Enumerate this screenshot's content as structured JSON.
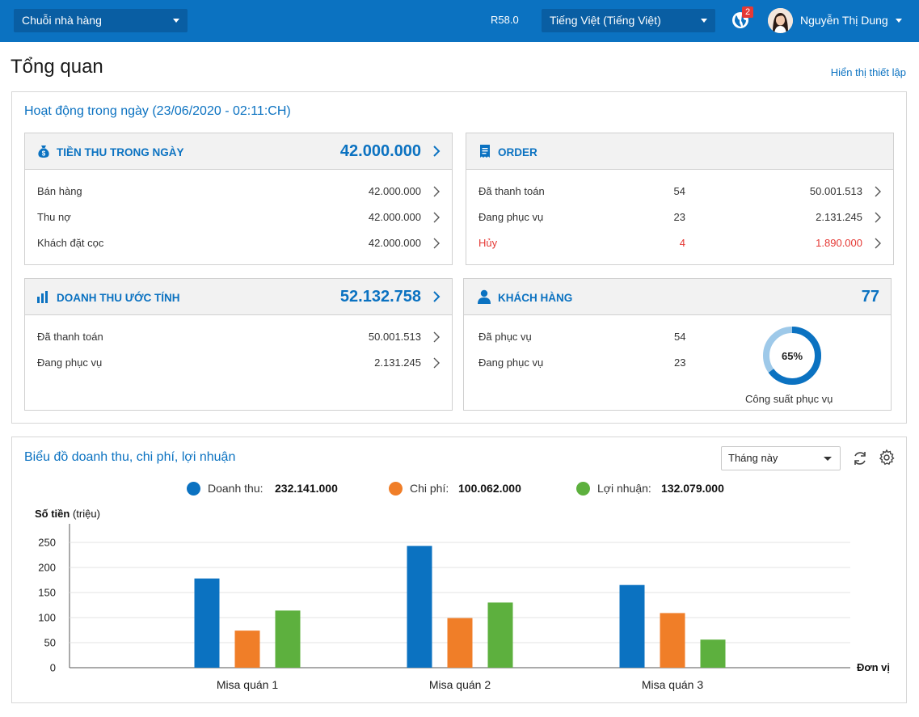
{
  "topbar": {
    "chain_select": "Chuỗi nhà hàng",
    "version": "R58.0",
    "language": "Tiếng Việt (Tiếng Việt)",
    "notification_count": "2",
    "user_name": "Nguyễn Thị Dung",
    "icons": [
      "globe-icon",
      "avatar",
      "chevron-down-icon"
    ]
  },
  "page": {
    "title": "Tổng quan",
    "settings_link": "Hiển thị thiết lập"
  },
  "activity": {
    "title": "Hoạt động trong ngày (23/06/2020 - 02:11:CH)",
    "revenue": {
      "title": "TIỀN THU TRONG NGÀY",
      "total": "42.000.000",
      "icon": "money-bag-icon",
      "rows": [
        {
          "label": "Bán hàng",
          "value": "42.000.000"
        },
        {
          "label": "Thu nợ",
          "value": "42.000.000"
        },
        {
          "label": "Khách đặt cọc",
          "value": "42.000.000"
        }
      ]
    },
    "order": {
      "title": "ORDER",
      "icon": "receipt-icon",
      "rows": [
        {
          "label": "Đã thanh toán",
          "count": "54",
          "value": "50.001.513"
        },
        {
          "label": "Đang phục vụ",
          "count": "23",
          "value": "2.131.245"
        },
        {
          "label": "Hủy",
          "count": "4",
          "value": "1.890.000",
          "status": "cancelled",
          "color": "#e53935"
        }
      ]
    },
    "estimated": {
      "title": "DOANH THU ƯỚC TÍNH",
      "total": "52.132.758",
      "icon": "bar-chart-icon",
      "rows": [
        {
          "label": "Đã thanh toán",
          "value": "50.001.513"
        },
        {
          "label": "Đang phục vụ",
          "value": "2.131.245"
        }
      ]
    },
    "customers": {
      "title": "KHÁCH HÀNG",
      "total": "77",
      "icon": "user-icon",
      "rows": [
        {
          "label": "Đã phục vụ",
          "count": "54"
        },
        {
          "label": "Đang phục vụ",
          "count": "23"
        }
      ],
      "capacity_percent": 65,
      "capacity_label": "65%",
      "capacity_caption": "Công suất phục vụ"
    }
  },
  "chart_panel": {
    "title": "Biểu đồ doanh thu, chi phí, lợi nhuận",
    "period": "Tháng này",
    "icons": [
      "refresh-icon",
      "gear-icon"
    ],
    "legend": [
      {
        "name": "Doanh thu:",
        "value": "232.141.000",
        "color": "#0b72c1"
      },
      {
        "name": "Chi phí:",
        "value": "100.062.000",
        "color": "#f07e28"
      },
      {
        "name": "Lợi nhuận:",
        "value": "132.079.000",
        "color": "#5db03e"
      }
    ],
    "y_title_bold": "Số tiền",
    "y_title_unit": "(triệu)",
    "x_unit": "Đơn vị"
  },
  "chart_data": {
    "type": "bar",
    "categories": [
      "Misa quán 1",
      "Misa quán 2",
      "Misa quán 3"
    ],
    "series": [
      {
        "name": "Doanh thu",
        "values": [
          178,
          243,
          165
        ],
        "color": "#0b72c1"
      },
      {
        "name": "Chi phí",
        "values": [
          74,
          99,
          109
        ],
        "color": "#f07e28"
      },
      {
        "name": "Lợi nhuận",
        "values": [
          114,
          130,
          56
        ],
        "color": "#5db03e"
      }
    ],
    "yticks": [
      0,
      50,
      100,
      150,
      200,
      250
    ],
    "ylim": [
      0,
      290
    ],
    "ylabel": "Số tiền (triệu)",
    "xlabel": "Đơn vị",
    "grid": true,
    "legend": "top"
  }
}
